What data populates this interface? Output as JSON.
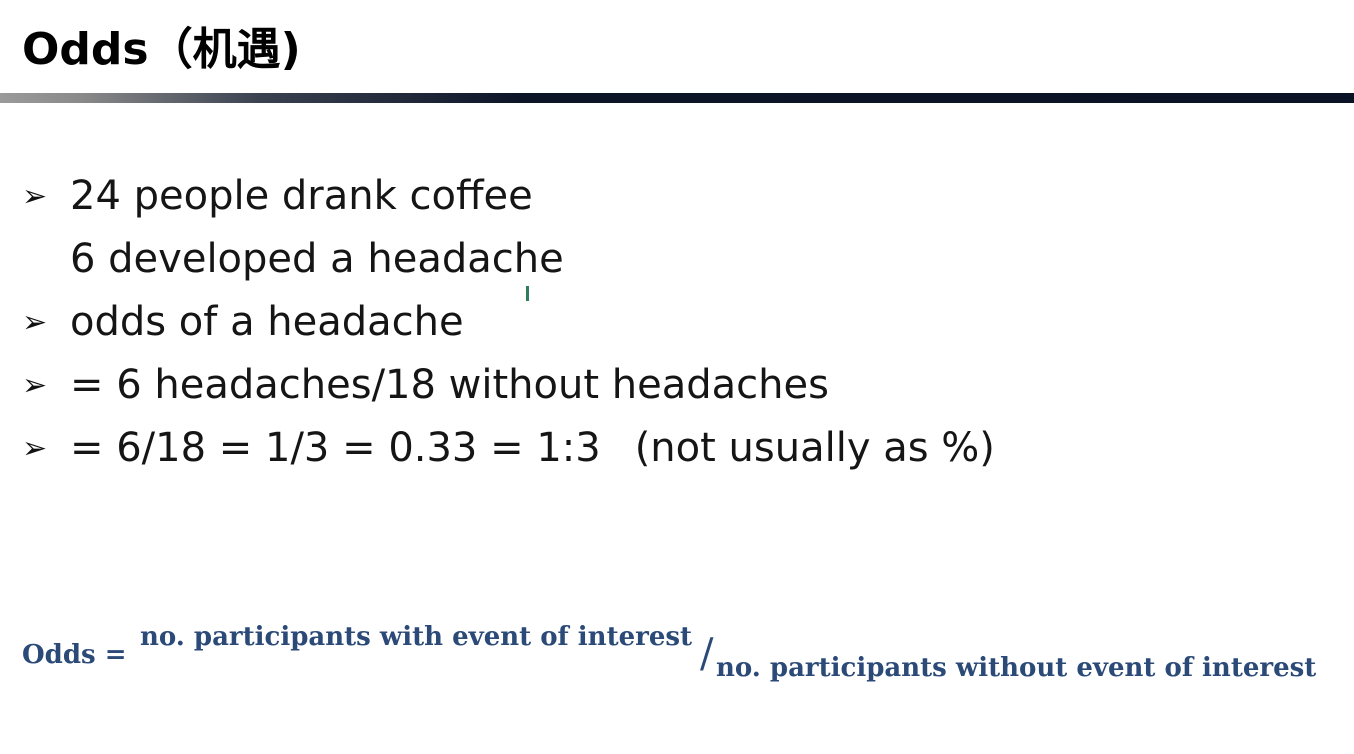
{
  "slide": {
    "title": "Odds（机遇)",
    "bullets": [
      {
        "marker": "➢",
        "text": "24 people drank coffee",
        "note": ""
      },
      {
        "marker": "",
        "text": "6 developed a headache",
        "note": ""
      },
      {
        "marker": "➢",
        "text": "odds of a headache",
        "note": ""
      },
      {
        "marker": "➢",
        "text": "= 6 headaches/18 without headaches",
        "note": ""
      },
      {
        "marker": "➢",
        "text": "= 6/18 = 1/3 = 0.33 = 1:3",
        "note": "(not usually as %)"
      }
    ],
    "formula": {
      "lhs": "Odds =",
      "numerator": "no. participants with event of interest",
      "slash": "/",
      "denominator": "no. participants without event of interest"
    }
  },
  "colors": {
    "formula_text": "#2b4a78",
    "title_rule_dark": "#0a1226",
    "cursor_mark": "#2e7d5b"
  }
}
